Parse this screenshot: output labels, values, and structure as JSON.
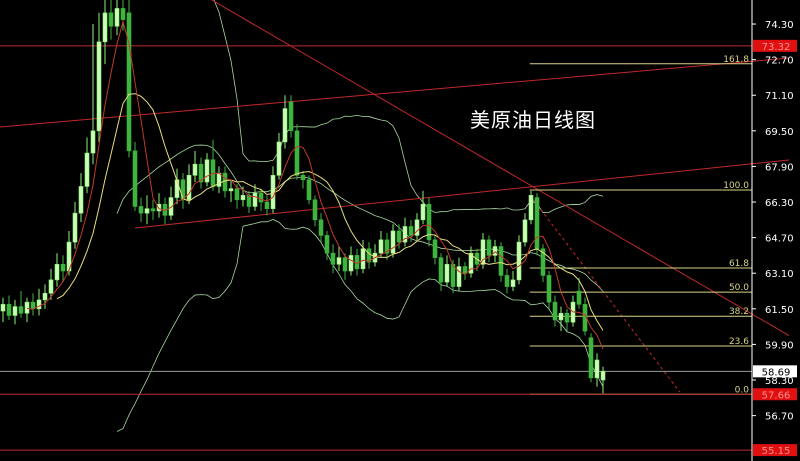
{
  "chart_data": {
    "type": "candlestick",
    "title": "美原油日线图",
    "ylim": [
      54.66,
      75.38
    ],
    "y_ticks": [
      "74.30",
      "72.70",
      "71.10",
      "69.50",
      "67.90",
      "66.30",
      "64.70",
      "63.10",
      "61.50",
      "59.90",
      "58.30",
      "56.70"
    ],
    "grid": false,
    "colors": {
      "background": "#000000",
      "up": "#c8ffb4",
      "down": "#3fb43f",
      "ma_fast": "#c0392b",
      "ma_slow": "#e6e07a",
      "bollinger": "#a8d8a0",
      "trendline": "#c0282a",
      "fib": "#d8d48a",
      "axis": "#ffffff"
    },
    "candles": [
      [
        61.4,
        62.0,
        60.9,
        61.7
      ],
      [
        61.7,
        62.1,
        61.0,
        61.2
      ],
      [
        61.2,
        61.9,
        60.8,
        61.6
      ],
      [
        61.6,
        62.3,
        61.1,
        61.3
      ],
      [
        61.3,
        62.0,
        60.9,
        61.8
      ],
      [
        61.8,
        62.2,
        61.2,
        61.5
      ],
      [
        61.5,
        62.4,
        61.2,
        61.9
      ],
      [
        61.9,
        62.6,
        61.5,
        62.2
      ],
      [
        62.2,
        63.3,
        61.9,
        62.8
      ],
      [
        62.8,
        64.0,
        62.5,
        63.5
      ],
      [
        63.5,
        63.9,
        62.7,
        63.2
      ],
      [
        63.2,
        65.0,
        63.0,
        64.5
      ],
      [
        64.5,
        66.3,
        64.2,
        65.8
      ],
      [
        65.8,
        67.6,
        65.4,
        67.0
      ],
      [
        67.0,
        69.2,
        66.7,
        68.5
      ],
      [
        68.5,
        74.3,
        68.0,
        69.5
      ],
      [
        69.5,
        74.8,
        69.0,
        73.5
      ],
      [
        73.5,
        75.4,
        72.5,
        74.8
      ],
      [
        74.8,
        75.4,
        73.6,
        74.2
      ],
      [
        74.2,
        75.4,
        73.8,
        75.0
      ],
      [
        75.0,
        75.4,
        74.0,
        74.5
      ],
      [
        74.8,
        75.4,
        68.3,
        68.6
      ],
      [
        68.6,
        69.0,
        65.9,
        66.1
      ],
      [
        66.1,
        66.5,
        65.4,
        65.8
      ],
      [
        65.8,
        66.6,
        65.3,
        66.0
      ],
      [
        66.0,
        66.4,
        65.5,
        65.9
      ],
      [
        65.9,
        66.7,
        65.6,
        66.2
      ],
      [
        66.2,
        66.5,
        65.3,
        65.7
      ],
      [
        65.7,
        67.0,
        65.5,
        66.5
      ],
      [
        66.5,
        67.8,
        66.2,
        67.3
      ],
      [
        67.3,
        67.6,
        66.0,
        66.4
      ],
      [
        66.4,
        68.0,
        66.2,
        67.5
      ],
      [
        67.5,
        68.6,
        67.2,
        68.0
      ],
      [
        68.0,
        68.3,
        66.9,
        67.2
      ],
      [
        67.2,
        68.5,
        67.0,
        68.2
      ],
      [
        68.2,
        69.1,
        66.8,
        67.0
      ],
      [
        67.0,
        67.9,
        66.7,
        67.6
      ],
      [
        67.6,
        67.9,
        66.5,
        66.8
      ],
      [
        66.8,
        67.3,
        66.3,
        66.9
      ],
      [
        66.9,
        67.1,
        66.0,
        66.4
      ],
      [
        66.4,
        67.0,
        66.1,
        66.6
      ],
      [
        66.6,
        66.8,
        65.8,
        66.1
      ],
      [
        66.1,
        67.1,
        65.9,
        66.7
      ],
      [
        66.7,
        66.9,
        65.9,
        66.3
      ],
      [
        66.3,
        66.6,
        65.7,
        66.0
      ],
      [
        66.0,
        67.9,
        65.8,
        67.5
      ],
      [
        67.5,
        69.4,
        67.3,
        69.0
      ],
      [
        69.0,
        71.1,
        68.7,
        70.5
      ],
      [
        70.8,
        71.1,
        69.2,
        69.5
      ],
      [
        69.5,
        69.8,
        67.3,
        67.5
      ],
      [
        67.5,
        67.7,
        66.9,
        67.3
      ],
      [
        67.3,
        67.5,
        66.2,
        66.4
      ],
      [
        66.4,
        66.6,
        65.2,
        65.5
      ],
      [
        65.5,
        65.8,
        64.5,
        64.8
      ],
      [
        64.8,
        65.0,
        63.7,
        64.0
      ],
      [
        64.0,
        64.4,
        63.1,
        63.5
      ],
      [
        63.5,
        64.3,
        63.2,
        63.8
      ],
      [
        63.8,
        64.0,
        62.8,
        63.2
      ],
      [
        63.2,
        64.3,
        63.0,
        63.9
      ],
      [
        63.9,
        64.2,
        63.0,
        63.3
      ],
      [
        63.3,
        64.6,
        63.1,
        64.2
      ],
      [
        64.2,
        64.5,
        63.3,
        63.6
      ],
      [
        63.6,
        64.4,
        63.4,
        64.0
      ],
      [
        64.0,
        65.0,
        63.8,
        64.6
      ],
      [
        64.6,
        64.9,
        63.7,
        64.0
      ],
      [
        64.0,
        65.3,
        63.8,
        65.0
      ],
      [
        65.0,
        65.3,
        64.2,
        64.5
      ],
      [
        64.5,
        65.6,
        64.3,
        65.2
      ],
      [
        65.2,
        65.5,
        64.5,
        64.8
      ],
      [
        64.8,
        65.8,
        64.6,
        65.5
      ],
      [
        65.5,
        66.8,
        65.3,
        66.2
      ],
      [
        66.2,
        66.5,
        64.3,
        64.6
      ],
      [
        64.6,
        64.8,
        63.5,
        63.8
      ],
      [
        63.8,
        64.0,
        62.3,
        62.7
      ],
      [
        62.7,
        63.9,
        62.5,
        63.5
      ],
      [
        63.5,
        63.7,
        62.2,
        62.5
      ],
      [
        62.5,
        63.8,
        62.3,
        63.4
      ],
      [
        63.4,
        63.6,
        62.8,
        63.1
      ],
      [
        63.1,
        64.3,
        62.9,
        64.0
      ],
      [
        64.0,
        64.2,
        63.2,
        63.5
      ],
      [
        63.5,
        64.9,
        63.3,
        64.6
      ],
      [
        64.6,
        64.8,
        63.6,
        63.9
      ],
      [
        63.9,
        64.6,
        63.6,
        64.3
      ],
      [
        64.3,
        64.5,
        62.7,
        63.0
      ],
      [
        63.0,
        63.3,
        62.2,
        62.5
      ],
      [
        62.5,
        63.2,
        62.3,
        62.8
      ],
      [
        62.8,
        64.8,
        62.6,
        64.5
      ],
      [
        64.5,
        65.8,
        64.3,
        65.5
      ],
      [
        65.5,
        66.8,
        65.3,
        66.6
      ],
      [
        66.5,
        66.7,
        63.9,
        64.2
      ],
      [
        64.2,
        64.4,
        62.7,
        63.0
      ],
      [
        63.0,
        63.2,
        61.5,
        61.8
      ],
      [
        61.8,
        62.1,
        60.7,
        61.0
      ],
      [
        61.0,
        61.6,
        60.5,
        61.3
      ],
      [
        61.3,
        61.5,
        60.5,
        60.9
      ],
      [
        60.9,
        62.1,
        60.7,
        61.8
      ],
      [
        62.3,
        62.9,
        61.5,
        61.7
      ],
      [
        61.7,
        62.0,
        60.3,
        60.5
      ],
      [
        60.2,
        60.4,
        58.2,
        58.4
      ],
      [
        58.4,
        59.5,
        58.0,
        59.2
      ],
      [
        58.3,
        58.9,
        57.7,
        58.69
      ]
    ],
    "horizontal_lines": [
      {
        "price": 73.32,
        "label": "73.32",
        "color": "#c0282a",
        "tag_bg": "#e01010"
      },
      {
        "price": 57.66,
        "label": "57.66",
        "color": "#c0282a",
        "tag_bg": "#e01010"
      },
      {
        "price": 55.15,
        "label": "55.15",
        "color": "#c0282a",
        "tag_bg": "#e01010"
      },
      {
        "price": 58.69,
        "label": "58.69",
        "color": "#9a9a9a",
        "tag_bg": "#ffffff"
      }
    ],
    "trendlines": [
      {
        "from": [
          34.8,
          75.38
        ],
        "to": [
          131,
          60.3
        ],
        "style": "solid"
      },
      {
        "from": [
          -0.5,
          69.67
        ],
        "to": [
          131,
          72.77
        ],
        "style": "solid"
      },
      {
        "from": [
          22,
          65.13
        ],
        "to": [
          131,
          68.19
        ],
        "style": "solid"
      },
      {
        "from": [
          87.8,
          66.61
        ],
        "to": [
          112.8,
          57.76
        ],
        "style": "dashed"
      }
    ],
    "fibonacci": {
      "low": 57.66,
      "high": 66.84,
      "from_index": 87.8,
      "to_index": 124.5,
      "levels": [
        {
          "ratio": 1.618,
          "label": "161.8"
        },
        {
          "ratio": 1.0,
          "label": "100.0"
        },
        {
          "ratio": 0.618,
          "label": "61.8"
        },
        {
          "ratio": 0.5,
          "label": "50.0"
        },
        {
          "ratio": 0.382,
          "label": "38.2"
        },
        {
          "ratio": 0.236,
          "label": "23.6"
        },
        {
          "ratio": 0.0,
          "label": "0.0"
        }
      ]
    }
  }
}
